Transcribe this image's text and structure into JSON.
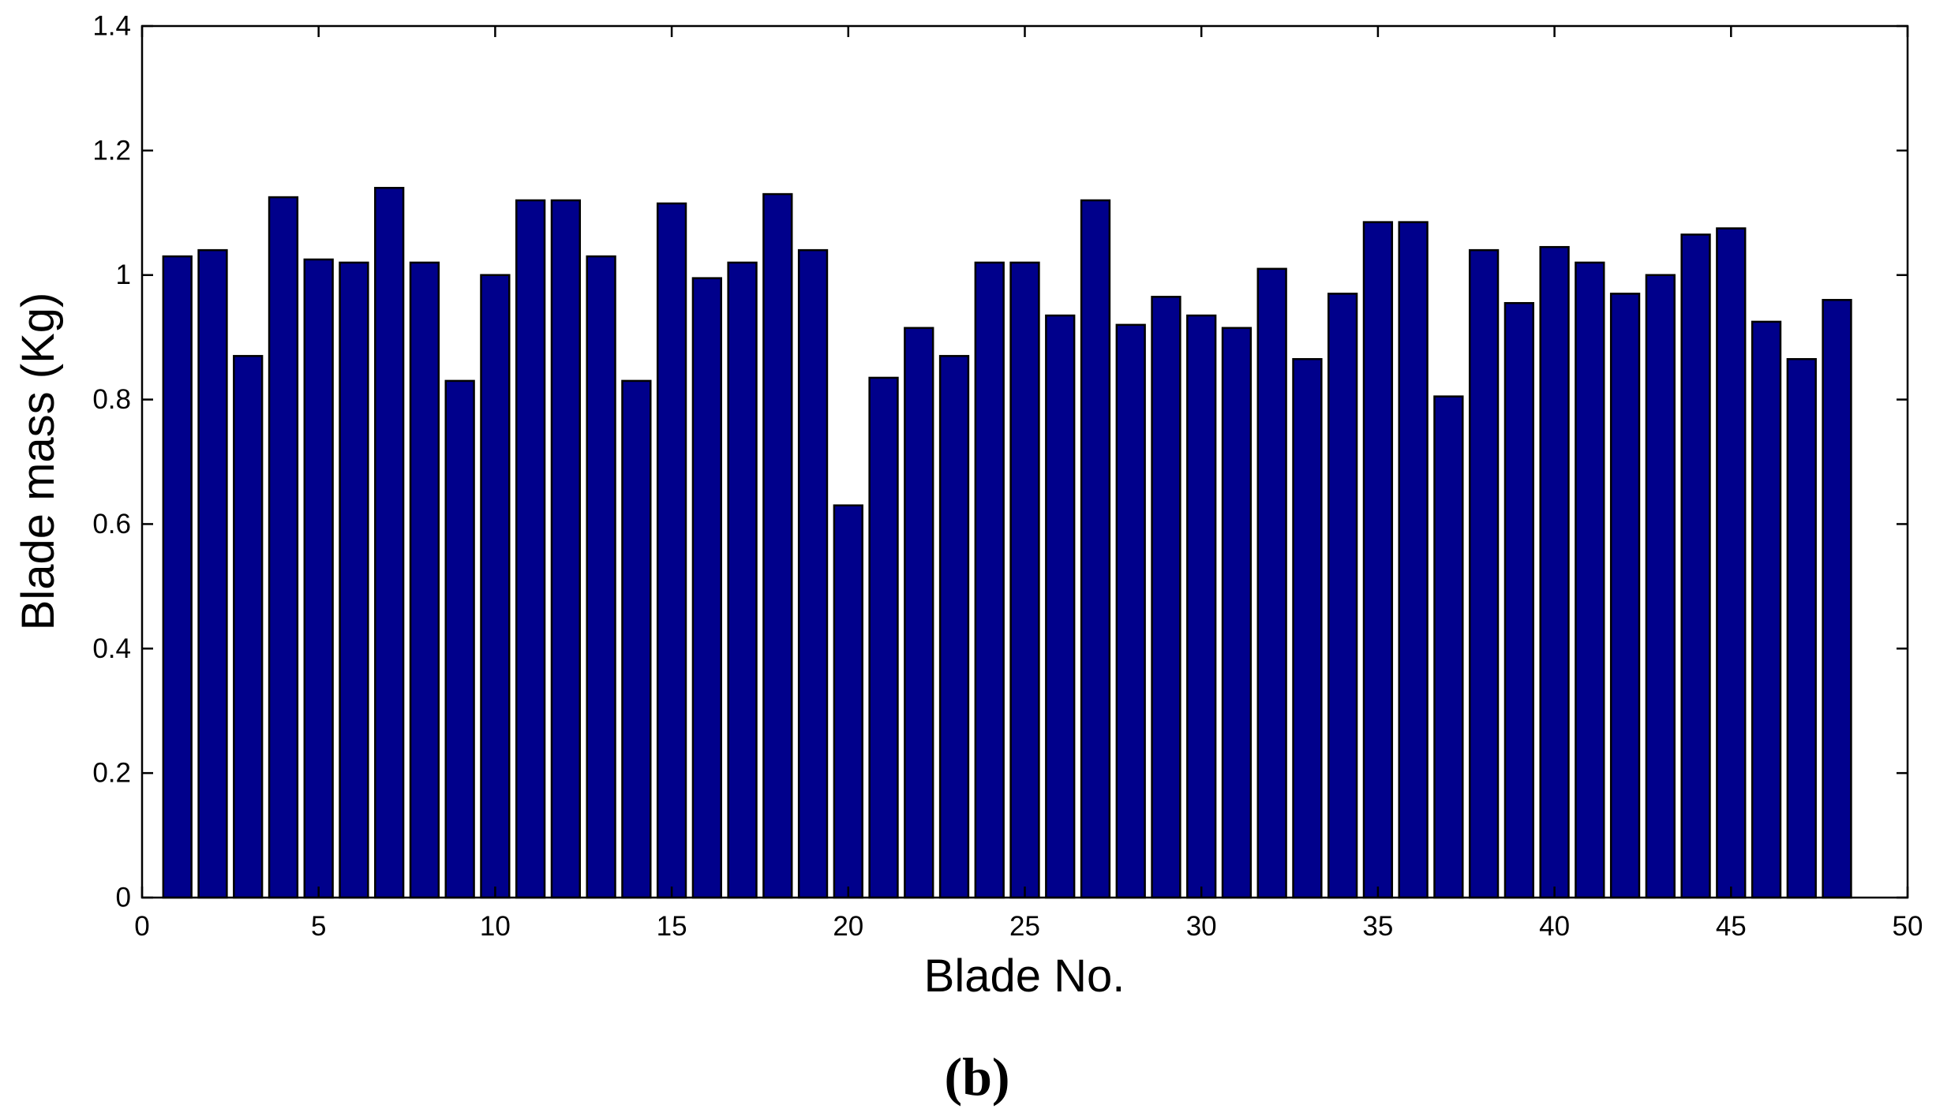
{
  "figure": {
    "panel_label": "(b)"
  },
  "chart_data": {
    "type": "bar",
    "xlabel": "Blade No.",
    "ylabel": "Blade mass (Kg)",
    "xlim": [
      0,
      50
    ],
    "ylim": [
      0,
      1.4
    ],
    "xticks": [
      0,
      5,
      10,
      15,
      20,
      25,
      30,
      35,
      40,
      45,
      50
    ],
    "xtick_labels": [
      "0",
      "5",
      "10",
      "15",
      "20",
      "25",
      "30",
      "35",
      "40",
      "45",
      "50"
    ],
    "yticks": [
      0,
      0.2,
      0.4,
      0.6,
      0.8,
      1.0,
      1.2,
      1.4
    ],
    "ytick_labels": [
      "0",
      "0.2",
      "0.4",
      "0.6",
      "0.8",
      "1",
      "1.2",
      "1.4"
    ],
    "grid": false,
    "bar_color": "#00008b",
    "x": [
      1,
      2,
      3,
      4,
      5,
      6,
      7,
      8,
      9,
      10,
      11,
      12,
      13,
      14,
      15,
      16,
      17,
      18,
      19,
      20,
      21,
      22,
      23,
      24,
      25,
      26,
      27,
      28,
      29,
      30,
      31,
      32,
      33,
      34,
      35,
      36,
      37,
      38,
      39,
      40,
      41,
      42,
      43,
      44,
      45,
      46,
      47,
      48
    ],
    "values": [
      1.03,
      1.04,
      0.87,
      1.125,
      1.025,
      1.02,
      1.14,
      1.02,
      0.83,
      1.0,
      1.12,
      1.12,
      1.03,
      0.83,
      1.115,
      0.995,
      1.02,
      1.13,
      1.04,
      0.63,
      0.835,
      0.915,
      0.87,
      1.02,
      1.02,
      0.935,
      1.12,
      0.92,
      0.965,
      0.935,
      0.915,
      1.01,
      0.865,
      0.97,
      1.085,
      1.085,
      0.805,
      1.04,
      0.955,
      1.045,
      1.02,
      0.97,
      1.0,
      1.065,
      1.075,
      0.925,
      0.865,
      0.96
    ]
  }
}
